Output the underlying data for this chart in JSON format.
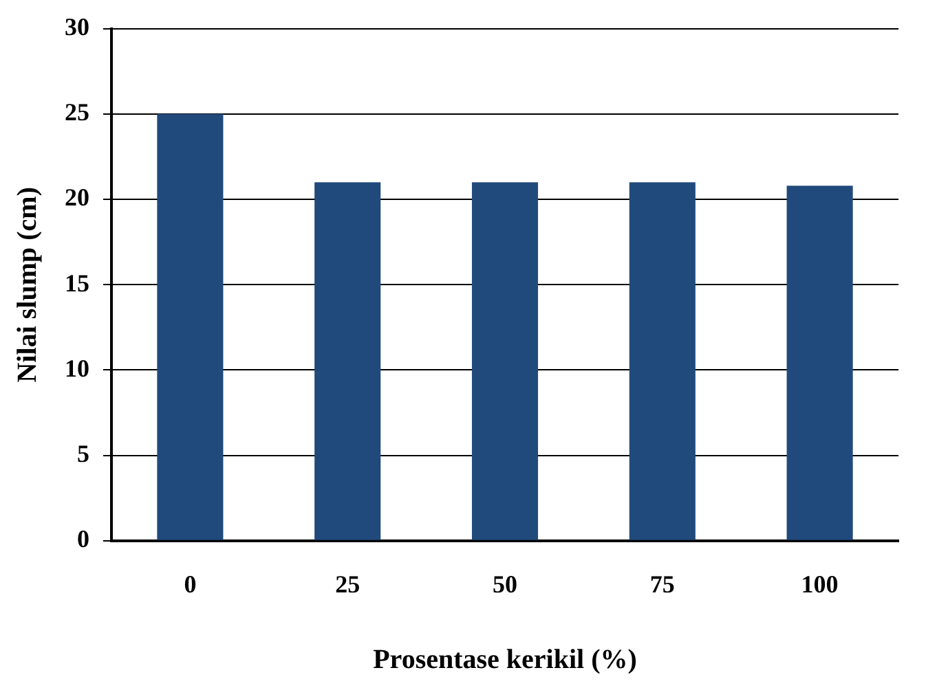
{
  "chart_data": {
    "type": "bar",
    "xlabel": "Prosentase kerikil (%)",
    "ylabel": "Nilai slump (cm)",
    "categories": [
      "0",
      "25",
      "50",
      "75",
      "100"
    ],
    "values": [
      25,
      21,
      21,
      21,
      20.8
    ],
    "color": "#214a7c",
    "ylim": [
      0,
      30
    ],
    "yticks": [
      0,
      5,
      10,
      15,
      20,
      25,
      30
    ],
    "grid": "y",
    "legend": false
  }
}
